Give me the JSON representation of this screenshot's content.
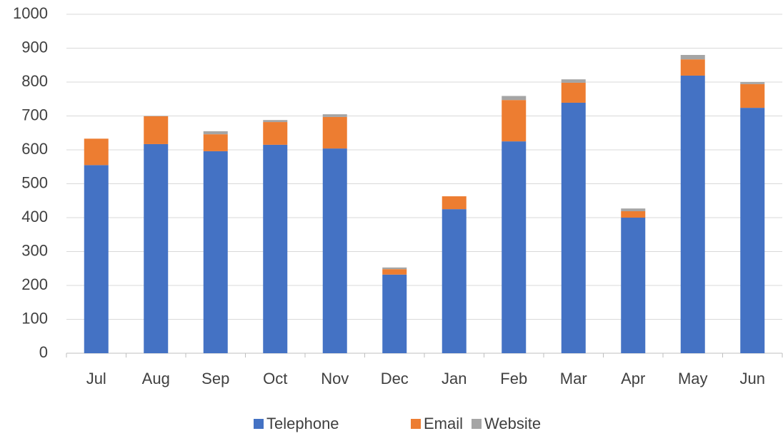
{
  "chart_data": {
    "type": "stacked_bar",
    "categories": [
      "Jul",
      "Aug",
      "Sep",
      "Oct",
      "Nov",
      "Dec",
      "Jan",
      "Feb",
      "Mar",
      "Apr",
      "May",
      "Jun"
    ],
    "series": [
      {
        "name": "Telephone",
        "color": "#4472c4",
        "values": [
          555,
          617,
          596,
          615,
          604,
          232,
          425,
          625,
          739,
          400,
          819,
          724
        ]
      },
      {
        "name": "Email",
        "color": "#ed7d31",
        "values": [
          78,
          82,
          50,
          67,
          93,
          16,
          38,
          122,
          59,
          19,
          48,
          70
        ]
      },
      {
        "name": "Website",
        "color": "#a5a5a5",
        "values": [
          0,
          1,
          9,
          6,
          8,
          5,
          0,
          12,
          10,
          8,
          13,
          6
        ]
      }
    ],
    "ylim": [
      0,
      1000
    ],
    "yticks": [
      0,
      100,
      200,
      300,
      400,
      500,
      600,
      700,
      800,
      900,
      1000
    ],
    "grid": true,
    "legend": "bottom"
  }
}
